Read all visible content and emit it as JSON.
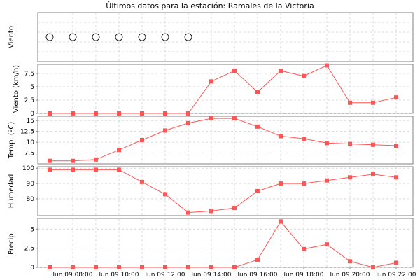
{
  "title": "Últimos datos para la estación: Ramales de la Victoria",
  "x_tick_labels": [
    "lun 09 08:00",
    "lun 09 10:00",
    "lun 09 12:00",
    "lun 09 14:00",
    "lun 09 16:00",
    "lun 09 18:00",
    "lun 09 20:00",
    "lun 09 22:00"
  ],
  "colors": {
    "series": "#ff5555",
    "grid": "#d0d0d0",
    "border": "#808080",
    "marker": "#ff5555"
  },
  "chart_data": [
    {
      "type": "scatter",
      "ylabel": "Viento",
      "x": [
        "07:00",
        "08:00",
        "09:00",
        "10:00",
        "11:00",
        "12:00",
        "13:00"
      ],
      "marker": "circle"
    },
    {
      "type": "line",
      "ylabel": "Viento (km/h)",
      "x": [
        "07:00",
        "08:00",
        "09:00",
        "10:00",
        "11:00",
        "12:00",
        "13:00",
        "14:00",
        "15:00",
        "16:00",
        "17:00",
        "18:00",
        "19:00",
        "20:00",
        "21:00",
        "22:00"
      ],
      "values": [
        0,
        0,
        0,
        0,
        0,
        0,
        0,
        6,
        8,
        4,
        8,
        7,
        9,
        2,
        2,
        3
      ],
      "ylim": [
        0,
        9.2
      ],
      "y_ticks": [
        0,
        2.5,
        5,
        7.5
      ],
      "y_tick_labels": [
        "0",
        "2,5",
        "5",
        "7,5"
      ]
    },
    {
      "type": "line",
      "ylabel": "Temp. (ºC)",
      "x": [
        "07:00",
        "08:00",
        "09:00",
        "10:00",
        "11:00",
        "12:00",
        "13:00",
        "14:00",
        "15:00",
        "16:00",
        "17:00",
        "18:00",
        "19:00",
        "20:00",
        "21:00",
        "22:00"
      ],
      "values": [
        5.7,
        5.7,
        6.0,
        8.2,
        10.5,
        12.7,
        14.4,
        15.5,
        15.5,
        13.6,
        11.4,
        10.8,
        9.8,
        9.6,
        9.4,
        9.2
      ],
      "ylim": [
        5,
        16
      ],
      "y_ticks": [
        7.5,
        10,
        12.5,
        15
      ],
      "y_tick_labels": [
        "7,5",
        "10",
        "12,5",
        "15"
      ]
    },
    {
      "type": "line",
      "ylabel": "Humedad",
      "x": [
        "07:00",
        "08:00",
        "09:00",
        "10:00",
        "11:00",
        "12:00",
        "13:00",
        "14:00",
        "15:00",
        "16:00",
        "17:00",
        "18:00",
        "19:00",
        "20:00",
        "21:00",
        "22:00"
      ],
      "values": [
        99,
        99,
        99,
        99,
        91,
        83,
        71,
        72,
        74,
        85,
        90,
        90,
        92,
        94,
        96,
        94
      ],
      "ylim": [
        69,
        101
      ],
      "y_ticks": [
        80,
        90,
        100
      ],
      "y_tick_labels": [
        "80",
        "90",
        "100"
      ]
    },
    {
      "type": "line",
      "ylabel": "Precip.",
      "x": [
        "07:00",
        "08:00",
        "09:00",
        "10:00",
        "11:00",
        "12:00",
        "13:00",
        "14:00",
        "15:00",
        "16:00",
        "17:00",
        "18:00",
        "19:00",
        "20:00",
        "21:00",
        "22:00"
      ],
      "values": [
        0,
        0,
        0,
        0,
        0,
        0,
        0,
        0,
        0,
        1,
        6,
        2.4,
        3,
        0.8,
        0,
        0.6
      ],
      "ylim": [
        0,
        6.4
      ],
      "y_ticks": [
        0,
        2.5,
        5
      ],
      "y_tick_labels": [
        "0",
        "2,5",
        "5"
      ]
    }
  ]
}
